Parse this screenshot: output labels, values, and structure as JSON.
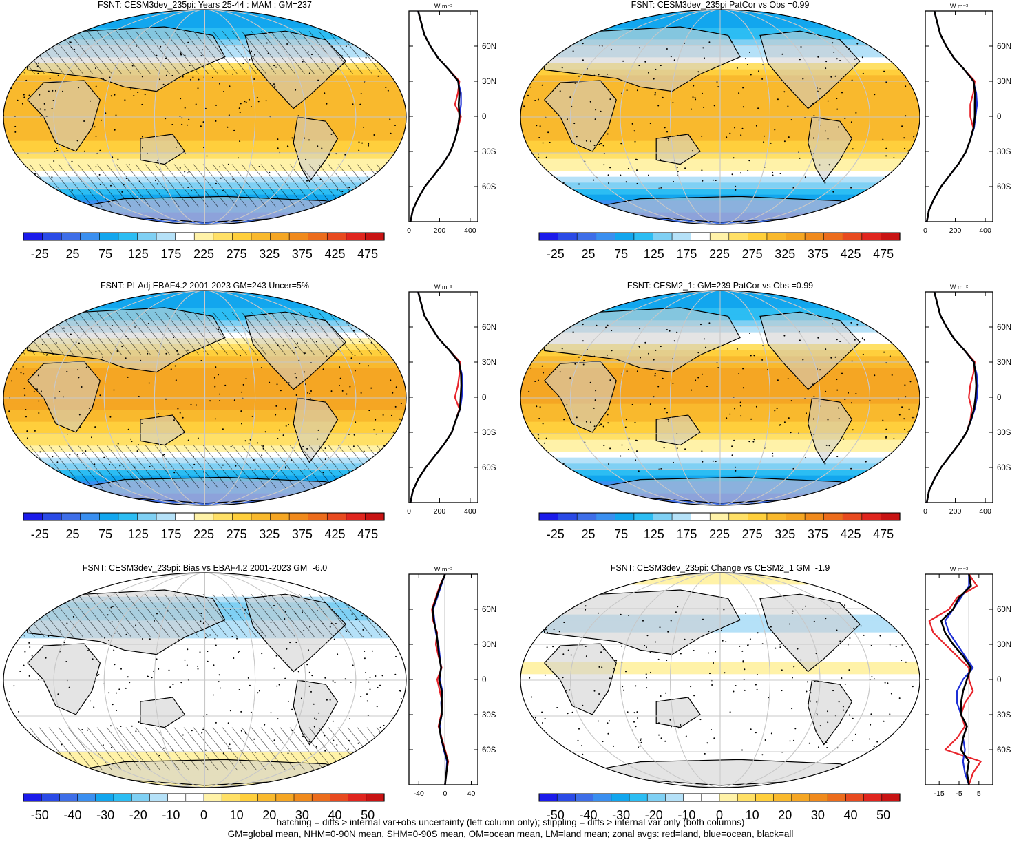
{
  "figure": {
    "footer_line1": "hatching = diffs > internal var+obs uncertainty (left column only); stippling = diffs > internal var only (both columns)",
    "footer_line2": "GM=global mean, NHM=0-90N mean, SHM=0-90S mean, OM=ocean mean, LM=land mean; zonal avgs: red=land, blue=ocean, black=all"
  },
  "colors": {
    "land": "#e8242b",
    "ocean": "#1d2fd6",
    "all": "#000000",
    "land_mask": "#cfcfcf",
    "full_scale": [
      "#1b1bea",
      "#2a4ae6",
      "#3e6ee8",
      "#3a8ff0",
      "#12a6ee",
      "#2cbdf3",
      "#7fd0f4",
      "#b5e1f8",
      "#ffffff",
      "#fff2a8",
      "#ffe066",
      "#ffcf3c",
      "#f9b92d",
      "#f5a623",
      "#f08a1c",
      "#ec6c1c",
      "#e84a1f",
      "#e0251e",
      "#c81313"
    ],
    "diff_scale": [
      "#1b1bea",
      "#2a4ae6",
      "#3e6ee8",
      "#3a8ff0",
      "#12a6ee",
      "#2cbdf3",
      "#7fd0f4",
      "#b5e1f8",
      "#ffffff",
      "#ffffff",
      "#fff2a8",
      "#ffe066",
      "#ffcf3c",
      "#f9b92d",
      "#f5a623",
      "#f08a1c",
      "#ec6c1c",
      "#e84a1f",
      "#e0251e",
      "#c81313"
    ]
  },
  "chart_data": [
    {
      "type": "heatmap",
      "title": "FSNT: CESM3dev_235pi: Years 25-44 : MAM : GM=237",
      "colorbar": {
        "labels": [
          "-25",
          "25",
          "75",
          "125",
          "175",
          "225",
          "275",
          "325",
          "375",
          "425",
          "475"
        ],
        "scale": "full"
      },
      "overlays": {
        "hatching": true,
        "stippling": true
      },
      "zonal_avg": {
        "unit_label": "W m-2",
        "xlim": [
          0,
          450
        ],
        "xticks": [
          "0",
          "200",
          "400"
        ],
        "ylim": [
          -90,
          90
        ],
        "yticks": [
          "60N",
          "30N",
          "0",
          "30S",
          "60S"
        ],
        "ytick_values": [
          60,
          30,
          0,
          -30,
          -60
        ],
        "lat": [
          -90,
          -80,
          -70,
          -60,
          -50,
          -40,
          -30,
          -20,
          -10,
          0,
          10,
          20,
          30,
          40,
          50,
          60,
          70,
          80,
          90
        ],
        "series": [
          {
            "group": "land",
            "values": [
              10,
              25,
              60,
              105,
              165,
              225,
              272,
              300,
              320,
              340,
              300,
              320,
              330,
              260,
              190,
              140,
              100,
              80,
              60
            ]
          },
          {
            "group": "ocean",
            "values": [
              10,
              25,
              60,
              105,
              165,
              225,
              272,
              300,
              320,
              330,
              340,
              340,
              320,
              260,
              190,
              140,
              100,
              80,
              60
            ]
          },
          {
            "group": "all",
            "values": [
              10,
              25,
              60,
              105,
              165,
              225,
              272,
              300,
              320,
              330,
              325,
              330,
              322,
              260,
              190,
              140,
              100,
              80,
              60
            ]
          }
        ]
      }
    },
    {
      "type": "heatmap",
      "title": "FSNT: CESM3dev_235pi PatCor vs Obs =0.99",
      "colorbar": {
        "labels": [
          "-25",
          "25",
          "75",
          "125",
          "175",
          "225",
          "275",
          "325",
          "375",
          "425",
          "475"
        ],
        "scale": "full"
      },
      "overlays": {
        "hatching": false,
        "stippling": true
      },
      "zonal_avg": {
        "unit_label": "W m-2",
        "xlim": [
          0,
          450
        ],
        "xticks": [
          "0",
          "200",
          "400"
        ],
        "ylim": [
          -90,
          90
        ],
        "yticks": [
          "60N",
          "30N",
          "0",
          "30S",
          "60S"
        ],
        "ytick_values": [
          60,
          30,
          0,
          -30,
          -60
        ],
        "lat": [
          -90,
          -80,
          -70,
          -60,
          -50,
          -40,
          -30,
          -20,
          -10,
          0,
          10,
          20,
          30,
          40,
          50,
          60,
          70,
          80,
          90
        ],
        "series": [
          {
            "group": "land",
            "values": [
              10,
              25,
              60,
              105,
              165,
              225,
              272,
              300,
              320,
              300,
              300,
              320,
              330,
              260,
              190,
              140,
              100,
              80,
              60
            ]
          },
          {
            "group": "ocean",
            "values": [
              10,
              25,
              60,
              105,
              165,
              225,
              272,
              300,
              325,
              335,
              345,
              340,
              320,
              260,
              190,
              140,
              100,
              80,
              60
            ]
          },
          {
            "group": "all",
            "values": [
              10,
              25,
              60,
              105,
              165,
              225,
              272,
              300,
              322,
              330,
              330,
              332,
              322,
              260,
              190,
              140,
              100,
              80,
              60
            ]
          }
        ]
      }
    },
    {
      "type": "heatmap",
      "title": "FSNT: PI-Adj EBAF4.2 2001-2023 GM=243 Uncer=5%",
      "colorbar": {
        "labels": [
          "-25",
          "25",
          "75",
          "125",
          "175",
          "225",
          "275",
          "325",
          "375",
          "425",
          "475"
        ],
        "scale": "full"
      },
      "overlays": {
        "hatching": true,
        "stippling": true
      },
      "zonal_avg": {
        "unit_label": "W m-2",
        "xlim": [
          0,
          450
        ],
        "xticks": [
          "0",
          "200",
          "400"
        ],
        "ylim": [
          -90,
          90
        ],
        "yticks": [
          "60N",
          "30N",
          "0",
          "30S",
          "60S"
        ],
        "ytick_values": [
          60,
          30,
          0,
          -30,
          -60
        ],
        "lat": [
          -90,
          -80,
          -70,
          -60,
          -50,
          -40,
          -30,
          -20,
          -10,
          0,
          10,
          20,
          30,
          40,
          50,
          60,
          70,
          80,
          90
        ],
        "series": [
          {
            "group": "land",
            "values": [
              10,
              25,
              60,
              110,
              170,
              230,
              280,
              305,
              330,
              300,
              320,
              330,
              335,
              265,
              195,
              145,
              100,
              80,
              60
            ]
          },
          {
            "group": "ocean",
            "values": [
              10,
              25,
              60,
              110,
              170,
              230,
              280,
              305,
              335,
              345,
              350,
              345,
              325,
              265,
              195,
              145,
              100,
              80,
              60
            ]
          },
          {
            "group": "all",
            "values": [
              10,
              25,
              60,
              110,
              170,
              230,
              280,
              305,
              333,
              338,
              342,
              340,
              327,
              265,
              195,
              145,
              100,
              80,
              60
            ]
          }
        ]
      }
    },
    {
      "type": "heatmap",
      "title": "FSNT: CESM2_1: GM=239 PatCor vs Obs =0.99",
      "colorbar": {
        "labels": [
          "-25",
          "25",
          "75",
          "125",
          "175",
          "225",
          "275",
          "325",
          "375",
          "425",
          "475"
        ],
        "scale": "full"
      },
      "overlays": {
        "hatching": false,
        "stippling": true
      },
      "zonal_avg": {
        "unit_label": "W m-2",
        "xlim": [
          0,
          450
        ],
        "xticks": [
          "0",
          "200",
          "400"
        ],
        "ylim": [
          -90,
          90
        ],
        "yticks": [
          "60N",
          "30N",
          "0",
          "30S",
          "60S"
        ],
        "ytick_values": [
          60,
          30,
          0,
          -30,
          -60
        ],
        "lat": [
          -90,
          -80,
          -70,
          -60,
          -50,
          -40,
          -30,
          -20,
          -10,
          0,
          10,
          20,
          30,
          40,
          50,
          60,
          70,
          80,
          90
        ],
        "series": [
          {
            "group": "land",
            "values": [
              10,
              25,
              60,
              105,
              165,
              225,
              275,
              300,
              310,
              290,
              300,
              320,
              330,
              262,
              192,
              142,
              100,
              80,
              60
            ]
          },
          {
            "group": "ocean",
            "values": [
              10,
              25,
              60,
              105,
              165,
              225,
              275,
              305,
              330,
              345,
              350,
              342,
              322,
              262,
              192,
              142,
              100,
              80,
              60
            ]
          },
          {
            "group": "all",
            "values": [
              10,
              25,
              60,
              105,
              165,
              225,
              275,
              303,
              325,
              335,
              340,
              335,
              324,
              262,
              192,
              142,
              100,
              80,
              60
            ]
          }
        ]
      }
    },
    {
      "type": "heatmap",
      "title": "FSNT: CESM3dev_235pi: Bias vs EBAF4.2 2001-2023 GM=-6.0",
      "colorbar": {
        "labels": [
          "-50",
          "-40",
          "-30",
          "-20",
          "-10",
          "0",
          "10",
          "20",
          "30",
          "40",
          "50"
        ],
        "scale": "diff"
      },
      "overlays": {
        "hatching": true,
        "stippling": true
      },
      "zonal_avg": {
        "unit_label": "W m-2",
        "xlim": [
          -55,
          50
        ],
        "xticks": [
          "-40",
          "0",
          "40"
        ],
        "xtick_values": [
          -40,
          0,
          40
        ],
        "zero_line": true,
        "ylim": [
          -90,
          90
        ],
        "yticks": [
          "60N",
          "30N",
          "0",
          "30S",
          "60S"
        ],
        "ytick_values": [
          60,
          30,
          0,
          -30,
          -60
        ],
        "lat": [
          -90,
          -80,
          -70,
          -60,
          -50,
          -40,
          -30,
          -20,
          -10,
          0,
          10,
          20,
          30,
          40,
          50,
          60,
          70,
          80,
          90
        ],
        "series": [
          {
            "group": "land",
            "values": [
              0,
              2,
              5,
              0,
              -5,
              -10,
              -6,
              -4,
              -8,
              -12,
              -5,
              -10,
              -14,
              -12,
              -18,
              -20,
              -14,
              -8,
              0
            ]
          },
          {
            "group": "ocean",
            "values": [
              0,
              2,
              3,
              -2,
              -6,
              -8,
              -5,
              -6,
              -4,
              -8,
              -6,
              -8,
              -10,
              -14,
              -16,
              -18,
              -12,
              -6,
              0
            ]
          },
          {
            "group": "all",
            "values": [
              0,
              2,
              4,
              -1,
              -6,
              -9,
              -5,
              -5,
              -5,
              -9,
              -6,
              -9,
              -11,
              -13,
              -17,
              -19,
              -13,
              -7,
              0
            ]
          }
        ]
      }
    },
    {
      "type": "heatmap",
      "title": "FSNT: CESM3dev_235pi: Change vs CESM2_1 GM=-1.9",
      "colorbar": {
        "labels": [
          "-50",
          "-40",
          "-30",
          "-20",
          "-10",
          "0",
          "10",
          "20",
          "30",
          "40",
          "50"
        ],
        "scale": "diff"
      },
      "overlays": {
        "hatching": false,
        "stippling": true
      },
      "zonal_avg": {
        "unit_label": "W m-2",
        "xlim": [
          -22,
          12
        ],
        "xticks": [
          "-15",
          "-5",
          "5"
        ],
        "xtick_values": [
          -15,
          -5,
          5
        ],
        "zero_line": true,
        "ylim": [
          -90,
          90
        ],
        "yticks": [
          "60N",
          "30N",
          "0",
          "30S",
          "60S"
        ],
        "ytick_values": [
          60,
          30,
          0,
          -30,
          -60
        ],
        "lat": [
          -90,
          -80,
          -70,
          -60,
          -50,
          -40,
          -30,
          -20,
          -10,
          0,
          10,
          20,
          30,
          40,
          50,
          60,
          70,
          80,
          90
        ],
        "series": [
          {
            "group": "land",
            "values": [
              0,
              2,
              6,
              -12,
              -6,
              -2,
              -4,
              -2,
              2,
              0,
              0,
              -6,
              -12,
              -18,
              -20,
              -10,
              -6,
              4,
              0
            ]
          },
          {
            "group": "ocean",
            "values": [
              0,
              -2,
              -3,
              -2,
              -3,
              -1,
              -4,
              -6,
              -6,
              -3,
              2,
              -2,
              -6,
              -10,
              -12,
              -8,
              -4,
              0,
              0
            ]
          },
          {
            "group": "all",
            "values": [
              0,
              -1,
              0,
              -4,
              -3,
              -1,
              -4,
              -4,
              -3,
              -1,
              1,
              -3,
              -8,
              -12,
              -14,
              -8,
              -5,
              1,
              0
            ]
          }
        ]
      }
    }
  ]
}
